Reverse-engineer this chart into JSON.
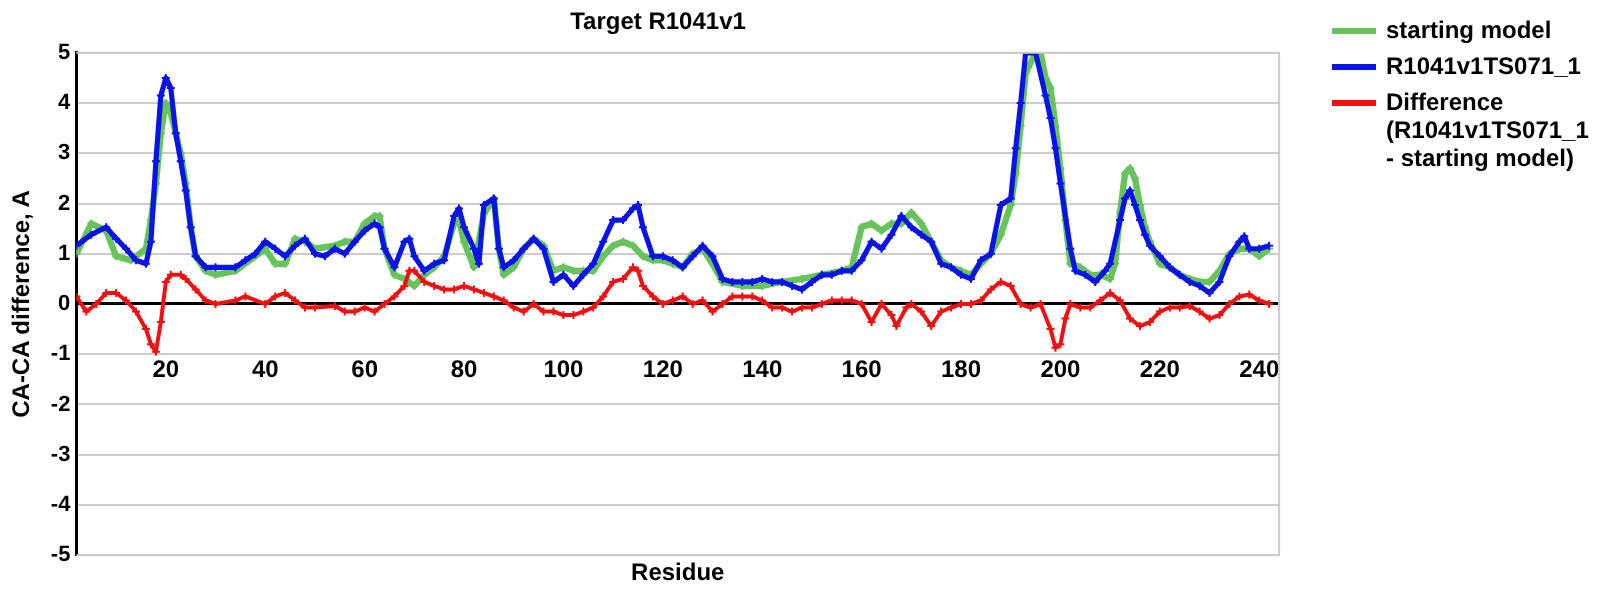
{
  "chart_data": {
    "type": "line",
    "title": "Target R1041v1",
    "xlabel": "Residue",
    "ylabel": "CA-CA difference, A",
    "xlim": [
      2,
      244
    ],
    "xticks": [
      20,
      40,
      60,
      80,
      100,
      120,
      140,
      160,
      180,
      200,
      220,
      240
    ],
    "ylim": [
      -5,
      5
    ],
    "yticks": [
      -5,
      -4,
      -3,
      -2,
      -1,
      0,
      1,
      2,
      3,
      4,
      5
    ],
    "grid": "y",
    "legend": "right",
    "marker": "cross",
    "line_style": "solid",
    "series": [
      {
        "name": "starting model",
        "color": "#66c45a",
        "x": [
          2,
          5,
          8,
          10,
          13,
          16,
          17,
          18,
          19,
          20,
          21,
          22,
          23,
          24,
          25,
          26,
          28,
          30,
          34,
          38,
          40,
          42,
          44,
          46,
          48,
          50,
          54,
          56,
          58,
          60,
          62,
          63,
          64,
          66,
          68,
          70,
          72,
          74,
          76,
          78,
          79,
          80,
          82,
          84,
          86,
          87,
          88,
          90,
          92,
          94,
          96,
          98,
          100,
          102,
          104,
          106,
          108,
          110,
          112,
          114,
          116,
          118,
          120,
          122,
          124,
          126,
          128,
          130,
          132,
          136,
          140,
          144,
          148,
          152,
          156,
          158,
          160,
          162,
          164,
          166,
          168,
          170,
          172,
          174,
          176,
          178,
          180,
          182,
          184,
          186,
          188,
          190,
          191,
          192,
          193,
          195,
          196,
          197,
          198,
          199,
          200,
          201,
          202,
          204,
          206,
          208,
          210,
          211,
          212,
          213,
          214,
          215,
          216,
          217,
          218,
          220,
          222,
          224,
          226,
          228,
          230,
          232,
          234,
          236,
          238,
          240,
          242
        ],
        "values": [
          1.0,
          1.6,
          1.46,
          0.95,
          0.87,
          1.1,
          1.67,
          2.4,
          3.4,
          4.0,
          3.8,
          3.4,
          3.0,
          2.4,
          1.53,
          0.95,
          0.66,
          0.58,
          0.66,
          0.95,
          1.1,
          0.8,
          0.8,
          1.3,
          1.24,
          1.1,
          1.16,
          1.24,
          1.24,
          1.6,
          1.75,
          1.75,
          1.1,
          0.58,
          0.5,
          0.36,
          0.58,
          0.73,
          0.95,
          1.6,
          1.67,
          1.24,
          0.73,
          1.8,
          2.1,
          1.1,
          0.58,
          0.73,
          1.1,
          1.3,
          1.16,
          0.66,
          0.73,
          0.66,
          0.66,
          0.66,
          0.95,
          1.16,
          1.24,
          1.16,
          0.95,
          0.87,
          0.87,
          0.8,
          0.73,
          1.0,
          1.1,
          0.8,
          0.44,
          0.36,
          0.36,
          0.44,
          0.5,
          0.58,
          0.66,
          0.73,
          1.53,
          1.6,
          1.46,
          1.6,
          1.6,
          1.82,
          1.6,
          1.24,
          0.87,
          0.73,
          0.66,
          0.58,
          0.8,
          1.0,
          1.38,
          1.97,
          2.6,
          3.55,
          4.6,
          5.0,
          5.0,
          4.5,
          4.3,
          3.55,
          2.7,
          1.67,
          0.8,
          0.73,
          0.58,
          0.58,
          0.5,
          0.8,
          1.82,
          2.6,
          2.7,
          2.5,
          1.97,
          1.53,
          1.24,
          0.8,
          0.73,
          0.58,
          0.5,
          0.44,
          0.44,
          0.66,
          1.0,
          1.1,
          1.1,
          0.95,
          1.1
        ]
      },
      {
        "name": "R1041v1TS071_1",
        "color": "#0a14e6",
        "x": [
          2,
          5,
          8,
          10,
          12,
          14,
          16,
          17,
          18,
          19,
          20,
          21,
          22,
          23,
          24,
          25,
          26,
          28,
          30,
          34,
          36,
          38,
          40,
          42,
          44,
          46,
          48,
          50,
          52,
          54,
          56,
          58,
          60,
          62,
          63,
          64,
          66,
          68,
          69,
          70,
          72,
          74,
          76,
          78,
          79,
          80,
          82,
          83,
          84,
          86,
          87,
          88,
          90,
          92,
          94,
          96,
          98,
          100,
          102,
          104,
          106,
          108,
          110,
          112,
          114,
          115,
          116,
          118,
          120,
          122,
          124,
          126,
          128,
          130,
          132,
          134,
          136,
          138,
          140,
          142,
          144,
          146,
          148,
          150,
          152,
          154,
          156,
          158,
          160,
          162,
          164,
          166,
          168,
          170,
          172,
          174,
          176,
          178,
          180,
          182,
          184,
          186,
          188,
          190,
          191,
          192,
          193,
          195,
          197,
          198,
          199,
          200,
          202,
          203,
          205,
          207,
          209,
          210,
          212,
          213,
          214,
          215,
          216,
          217,
          218,
          220,
          222,
          224,
          226,
          228,
          230,
          232,
          234,
          236,
          237,
          238,
          240,
          242
        ],
        "values": [
          1.16,
          1.38,
          1.53,
          1.3,
          1.1,
          0.87,
          0.8,
          1.24,
          2.84,
          4.15,
          4.5,
          4.3,
          3.4,
          2.84,
          2.26,
          1.53,
          0.95,
          0.73,
          0.73,
          0.73,
          0.87,
          1.0,
          1.24,
          1.1,
          0.95,
          1.16,
          1.3,
          1.0,
          0.95,
          1.1,
          1.0,
          1.24,
          1.46,
          1.6,
          1.53,
          1.1,
          0.73,
          1.24,
          1.3,
          0.95,
          0.66,
          0.8,
          0.87,
          1.75,
          1.9,
          1.53,
          1.1,
          0.8,
          1.97,
          2.1,
          1.1,
          0.73,
          0.87,
          1.1,
          1.3,
          1.1,
          0.44,
          0.58,
          0.36,
          0.58,
          0.8,
          1.24,
          1.67,
          1.67,
          1.9,
          1.97,
          1.53,
          0.95,
          0.95,
          0.87,
          0.73,
          0.95,
          1.16,
          0.95,
          0.5,
          0.44,
          0.44,
          0.44,
          0.5,
          0.44,
          0.44,
          0.36,
          0.29,
          0.44,
          0.58,
          0.58,
          0.66,
          0.66,
          0.87,
          1.24,
          1.1,
          1.38,
          1.75,
          1.53,
          1.38,
          1.24,
          0.8,
          0.73,
          0.58,
          0.5,
          0.87,
          1.0,
          1.97,
          2.1,
          3.1,
          4.0,
          5.0,
          5.0,
          4.15,
          3.7,
          3.1,
          2.4,
          1.1,
          0.66,
          0.58,
          0.44,
          0.66,
          0.8,
          1.67,
          2.1,
          2.26,
          1.97,
          1.67,
          1.38,
          1.16,
          0.95,
          0.73,
          0.58,
          0.44,
          0.36,
          0.22,
          0.44,
          0.95,
          1.24,
          1.35,
          1.1,
          1.1,
          1.16
        ]
      },
      {
        "name": "Difference (R1041v1TS071_1 - starting model)",
        "color": "#f01010",
        "x": [
          2,
          4,
          6,
          8,
          10,
          12,
          14,
          16,
          17,
          18,
          19,
          20,
          21,
          23,
          24,
          26,
          28,
          30,
          34,
          36,
          40,
          42,
          44,
          46,
          48,
          50,
          54,
          56,
          58,
          60,
          62,
          64,
          66,
          68,
          69,
          70,
          72,
          74,
          76,
          78,
          80,
          82,
          84,
          86,
          88,
          90,
          92,
          94,
          96,
          98,
          100,
          102,
          104,
          106,
          108,
          110,
          112,
          114,
          115,
          116,
          118,
          120,
          122,
          124,
          126,
          128,
          130,
          132,
          134,
          136,
          138,
          140,
          142,
          144,
          146,
          148,
          150,
          152,
          154,
          156,
          158,
          160,
          162,
          164,
          166,
          167,
          169,
          170,
          172,
          174,
          176,
          178,
          180,
          182,
          184,
          186,
          188,
          190,
          192,
          194,
          196,
          198,
          199,
          200,
          201,
          202,
          204,
          206,
          208,
          210,
          212,
          214,
          216,
          218,
          220,
          222,
          224,
          226,
          228,
          230,
          232,
          234,
          236,
          238,
          240,
          242
        ],
        "values": [
          0.15,
          -0.15,
          0,
          0.22,
          0.22,
          0.07,
          -0.15,
          -0.5,
          -0.8,
          -0.95,
          -0.36,
          0.44,
          0.58,
          0.58,
          0.5,
          0.29,
          0.07,
          0,
          0.07,
          0.15,
          0,
          0.15,
          0.22,
          0.07,
          -0.07,
          -0.07,
          -0.04,
          -0.15,
          -0.15,
          -0.07,
          -0.15,
          0,
          0.15,
          0.36,
          0.66,
          0.66,
          0.44,
          0.36,
          0.29,
          0.29,
          0.36,
          0.29,
          0.22,
          0.15,
          0.07,
          -0.07,
          -0.15,
          0,
          -0.15,
          -0.15,
          -0.22,
          -0.22,
          -0.15,
          -0.07,
          0.15,
          0.44,
          0.5,
          0.73,
          0.66,
          0.36,
          0.15,
          0,
          0.07,
          0.15,
          0,
          0.07,
          -0.15,
          0,
          0.15,
          0.15,
          0.15,
          0.07,
          -0.07,
          -0.07,
          -0.15,
          -0.07,
          -0.07,
          0,
          0.07,
          0.07,
          0.07,
          0,
          -0.36,
          0,
          -0.22,
          -0.44,
          -0.07,
          0,
          -0.15,
          -0.44,
          -0.15,
          -0.07,
          0,
          0,
          0.07,
          0.29,
          0.44,
          0.36,
          0,
          -0.07,
          0,
          -0.5,
          -0.87,
          -0.8,
          -0.29,
          0,
          -0.07,
          -0.07,
          0.07,
          0.22,
          0.07,
          -0.29,
          -0.44,
          -0.36,
          -0.15,
          -0.07,
          -0.07,
          -0.04,
          -0.15,
          -0.29,
          -0.22,
          0,
          0.15,
          0.19,
          0.07,
          0
        ]
      }
    ]
  }
}
